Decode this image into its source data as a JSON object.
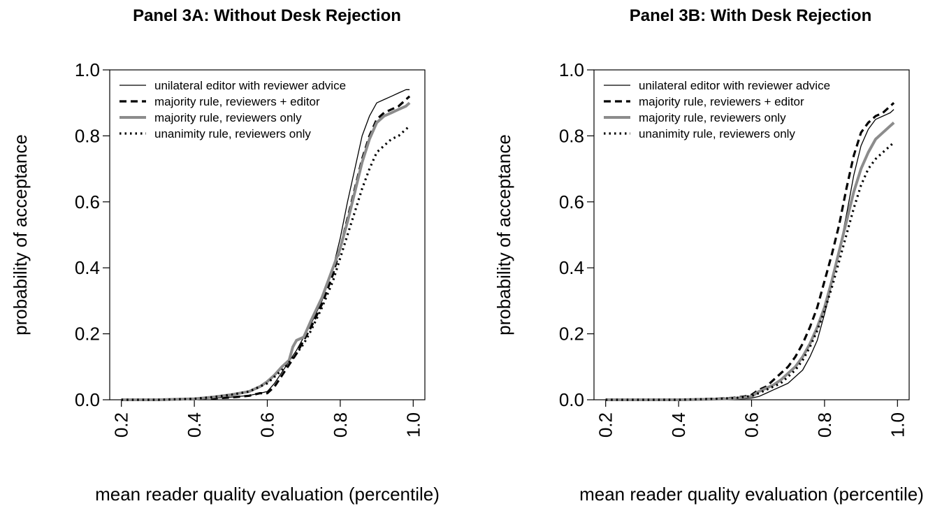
{
  "chart_data": [
    {
      "type": "line",
      "title": "Panel 3A: Without Desk Rejection",
      "xlabel": "mean reader quality evaluation (percentile)",
      "ylabel": "probability of acceptance",
      "xlim": [
        0.2,
        1.0
      ],
      "ylim": [
        0.0,
        1.0
      ],
      "xticks": [
        "0.2",
        "0.4",
        "0.6",
        "0.8",
        "1.0"
      ],
      "yticks": [
        "0.0",
        "0.2",
        "0.4",
        "0.6",
        "0.8",
        "1.0"
      ],
      "legend_position": "top-left",
      "grid": false,
      "series": [
        {
          "name": "unilateral editor with reviewer advice",
          "style": "solid-thin",
          "color": "#000000",
          "x": [
            0.2,
            0.3,
            0.4,
            0.45,
            0.5,
            0.55,
            0.58,
            0.6,
            0.62,
            0.65,
            0.68,
            0.7,
            0.72,
            0.75,
            0.78,
            0.8,
            0.82,
            0.84,
            0.86,
            0.88,
            0.9,
            0.92,
            0.94,
            0.96,
            0.98,
            0.99
          ],
          "y": [
            0.0,
            0.0,
            0.002,
            0.005,
            0.008,
            0.013,
            0.02,
            0.025,
            0.05,
            0.1,
            0.15,
            0.19,
            0.23,
            0.3,
            0.4,
            0.49,
            0.6,
            0.7,
            0.8,
            0.86,
            0.9,
            0.91,
            0.92,
            0.93,
            0.94,
            0.94
          ]
        },
        {
          "name": "majority rule, reviewers + editor",
          "style": "dashed-thick",
          "color": "#000000",
          "x": [
            0.2,
            0.3,
            0.4,
            0.45,
            0.5,
            0.55,
            0.58,
            0.6,
            0.62,
            0.65,
            0.68,
            0.7,
            0.72,
            0.75,
            0.78,
            0.8,
            0.82,
            0.84,
            0.86,
            0.88,
            0.9,
            0.92,
            0.94,
            0.96,
            0.98,
            0.99
          ],
          "y": [
            0.0,
            0.0,
            0.002,
            0.004,
            0.007,
            0.012,
            0.02,
            0.02,
            0.04,
            0.09,
            0.14,
            0.18,
            0.22,
            0.29,
            0.38,
            0.46,
            0.55,
            0.64,
            0.73,
            0.8,
            0.85,
            0.87,
            0.88,
            0.89,
            0.91,
            0.92
          ]
        },
        {
          "name": "majority rule, reviewers only",
          "style": "solid-thick",
          "color": "#8c8c8c",
          "x": [
            0.2,
            0.3,
            0.4,
            0.45,
            0.5,
            0.55,
            0.58,
            0.6,
            0.62,
            0.64,
            0.66,
            0.67,
            0.68,
            0.7,
            0.72,
            0.75,
            0.78,
            0.8,
            0.82,
            0.84,
            0.86,
            0.88,
            0.9,
            0.92,
            0.94,
            0.96,
            0.98,
            0.99
          ],
          "y": [
            0.0,
            0.0,
            0.003,
            0.008,
            0.015,
            0.025,
            0.04,
            0.055,
            0.075,
            0.1,
            0.12,
            0.16,
            0.18,
            0.19,
            0.24,
            0.31,
            0.4,
            0.46,
            0.54,
            0.63,
            0.72,
            0.79,
            0.84,
            0.86,
            0.87,
            0.88,
            0.89,
            0.9
          ]
        },
        {
          "name": "unanimity rule, reviewers only",
          "style": "dotted-thick",
          "color": "#000000",
          "x": [
            0.2,
            0.3,
            0.4,
            0.45,
            0.5,
            0.55,
            0.58,
            0.6,
            0.62,
            0.65,
            0.68,
            0.7,
            0.72,
            0.75,
            0.78,
            0.8,
            0.82,
            0.84,
            0.86,
            0.88,
            0.9,
            0.92,
            0.94,
            0.96,
            0.98,
            0.99
          ],
          "y": [
            0.0,
            0.0,
            0.003,
            0.008,
            0.015,
            0.025,
            0.04,
            0.05,
            0.07,
            0.1,
            0.14,
            0.17,
            0.21,
            0.28,
            0.36,
            0.43,
            0.5,
            0.57,
            0.64,
            0.7,
            0.75,
            0.77,
            0.79,
            0.8,
            0.82,
            0.83
          ]
        }
      ]
    },
    {
      "type": "line",
      "title": "Panel 3B: With Desk Rejection",
      "xlabel": "mean reader quality evaluation (percentile)",
      "ylabel": "probability of acceptance",
      "xlim": [
        0.2,
        1.0
      ],
      "ylim": [
        0.0,
        1.0
      ],
      "xticks": [
        "0.2",
        "0.4",
        "0.6",
        "0.8",
        "1.0"
      ],
      "yticks": [
        "0.0",
        "0.2",
        "0.4",
        "0.6",
        "0.8",
        "1.0"
      ],
      "legend_position": "top-left",
      "grid": false,
      "series": [
        {
          "name": "unilateral editor with reviewer advice",
          "style": "solid-thin",
          "color": "#000000",
          "x": [
            0.2,
            0.3,
            0.4,
            0.5,
            0.55,
            0.58,
            0.6,
            0.62,
            0.64,
            0.66,
            0.68,
            0.7,
            0.72,
            0.74,
            0.76,
            0.78,
            0.8,
            0.82,
            0.84,
            0.86,
            0.88,
            0.9,
            0.92,
            0.94,
            0.96,
            0.98,
            0.99
          ],
          "y": [
            0.0,
            0.0,
            0.0,
            0.0,
            0.002,
            0.003,
            0.005,
            0.01,
            0.02,
            0.03,
            0.04,
            0.05,
            0.07,
            0.09,
            0.13,
            0.18,
            0.26,
            0.35,
            0.45,
            0.56,
            0.68,
            0.77,
            0.82,
            0.85,
            0.86,
            0.87,
            0.88
          ]
        },
        {
          "name": "majority rule, reviewers + editor",
          "style": "dashed-thick",
          "color": "#000000",
          "x": [
            0.2,
            0.3,
            0.4,
            0.5,
            0.55,
            0.58,
            0.6,
            0.62,
            0.64,
            0.66,
            0.68,
            0.7,
            0.72,
            0.74,
            0.76,
            0.78,
            0.8,
            0.82,
            0.84,
            0.86,
            0.88,
            0.9,
            0.92,
            0.94,
            0.96,
            0.98,
            0.99
          ],
          "y": [
            0.0,
            0.0,
            0.0,
            0.003,
            0.006,
            0.01,
            0.015,
            0.03,
            0.04,
            0.06,
            0.08,
            0.1,
            0.13,
            0.17,
            0.22,
            0.28,
            0.36,
            0.44,
            0.53,
            0.64,
            0.74,
            0.81,
            0.84,
            0.86,
            0.87,
            0.89,
            0.9
          ]
        },
        {
          "name": "majority rule, reviewers only",
          "style": "solid-thick",
          "color": "#8c8c8c",
          "x": [
            0.2,
            0.3,
            0.4,
            0.5,
            0.55,
            0.58,
            0.6,
            0.62,
            0.64,
            0.66,
            0.68,
            0.7,
            0.72,
            0.74,
            0.76,
            0.78,
            0.8,
            0.82,
            0.84,
            0.86,
            0.88,
            0.9,
            0.92,
            0.94,
            0.96,
            0.98,
            0.99
          ],
          "y": [
            0.0,
            0.0,
            0.0,
            0.002,
            0.004,
            0.007,
            0.01,
            0.025,
            0.035,
            0.045,
            0.06,
            0.08,
            0.1,
            0.13,
            0.17,
            0.22,
            0.28,
            0.36,
            0.45,
            0.54,
            0.63,
            0.7,
            0.75,
            0.79,
            0.81,
            0.83,
            0.84
          ]
        },
        {
          "name": "unanimity rule, reviewers only",
          "style": "dotted-thick",
          "color": "#000000",
          "x": [
            0.2,
            0.3,
            0.4,
            0.5,
            0.55,
            0.58,
            0.6,
            0.62,
            0.64,
            0.66,
            0.68,
            0.7,
            0.72,
            0.74,
            0.76,
            0.78,
            0.8,
            0.82,
            0.84,
            0.86,
            0.88,
            0.9,
            0.92,
            0.94,
            0.96,
            0.98,
            0.99
          ],
          "y": [
            0.0,
            0.0,
            0.0,
            0.003,
            0.005,
            0.008,
            0.012,
            0.02,
            0.03,
            0.04,
            0.05,
            0.07,
            0.09,
            0.12,
            0.16,
            0.21,
            0.27,
            0.34,
            0.42,
            0.5,
            0.58,
            0.65,
            0.7,
            0.73,
            0.75,
            0.77,
            0.78
          ]
        }
      ]
    }
  ]
}
